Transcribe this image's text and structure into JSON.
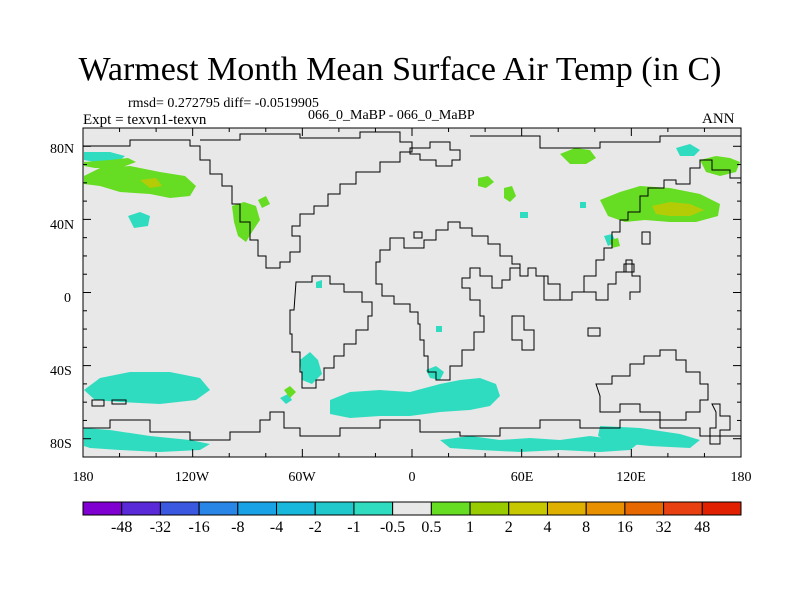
{
  "title": "Warmest Month Mean Surface Air Temp (in C)",
  "stats": "rmsd= 0.272795 diff= -0.0519905",
  "experiment": "Expt = texvn1-texvn",
  "period": "066_0_MaBP - 066_0_MaBP",
  "season": "ANN",
  "lat_labels": [
    "80N",
    "40N",
    "0",
    "40S",
    "80S"
  ],
  "lon_labels": [
    "180",
    "120W",
    "60W",
    "0",
    "60E",
    "120E",
    "180"
  ],
  "colorbar": {
    "colors": [
      "#7f00d0",
      "#5a2ad8",
      "#3a58e0",
      "#2a86e6",
      "#1aa2e6",
      "#18b8dc",
      "#20c8cc",
      "#30dcc0",
      "#e8e8e8",
      "#66dd22",
      "#99cc00",
      "#c8c800",
      "#e0b000",
      "#e89000",
      "#e86800",
      "#e84010",
      "#e02000"
    ],
    "labels": [
      "-48",
      "-32",
      "-16",
      "-8",
      "-4",
      "-2",
      "-1",
      "-0.5",
      "0.5",
      "1",
      "2",
      "4",
      "8",
      "16",
      "32",
      "48"
    ]
  },
  "anomaly_colors": {
    "cyan": "#30dcc0",
    "green": "#66dd22",
    "yellow": "#c8c800"
  }
}
